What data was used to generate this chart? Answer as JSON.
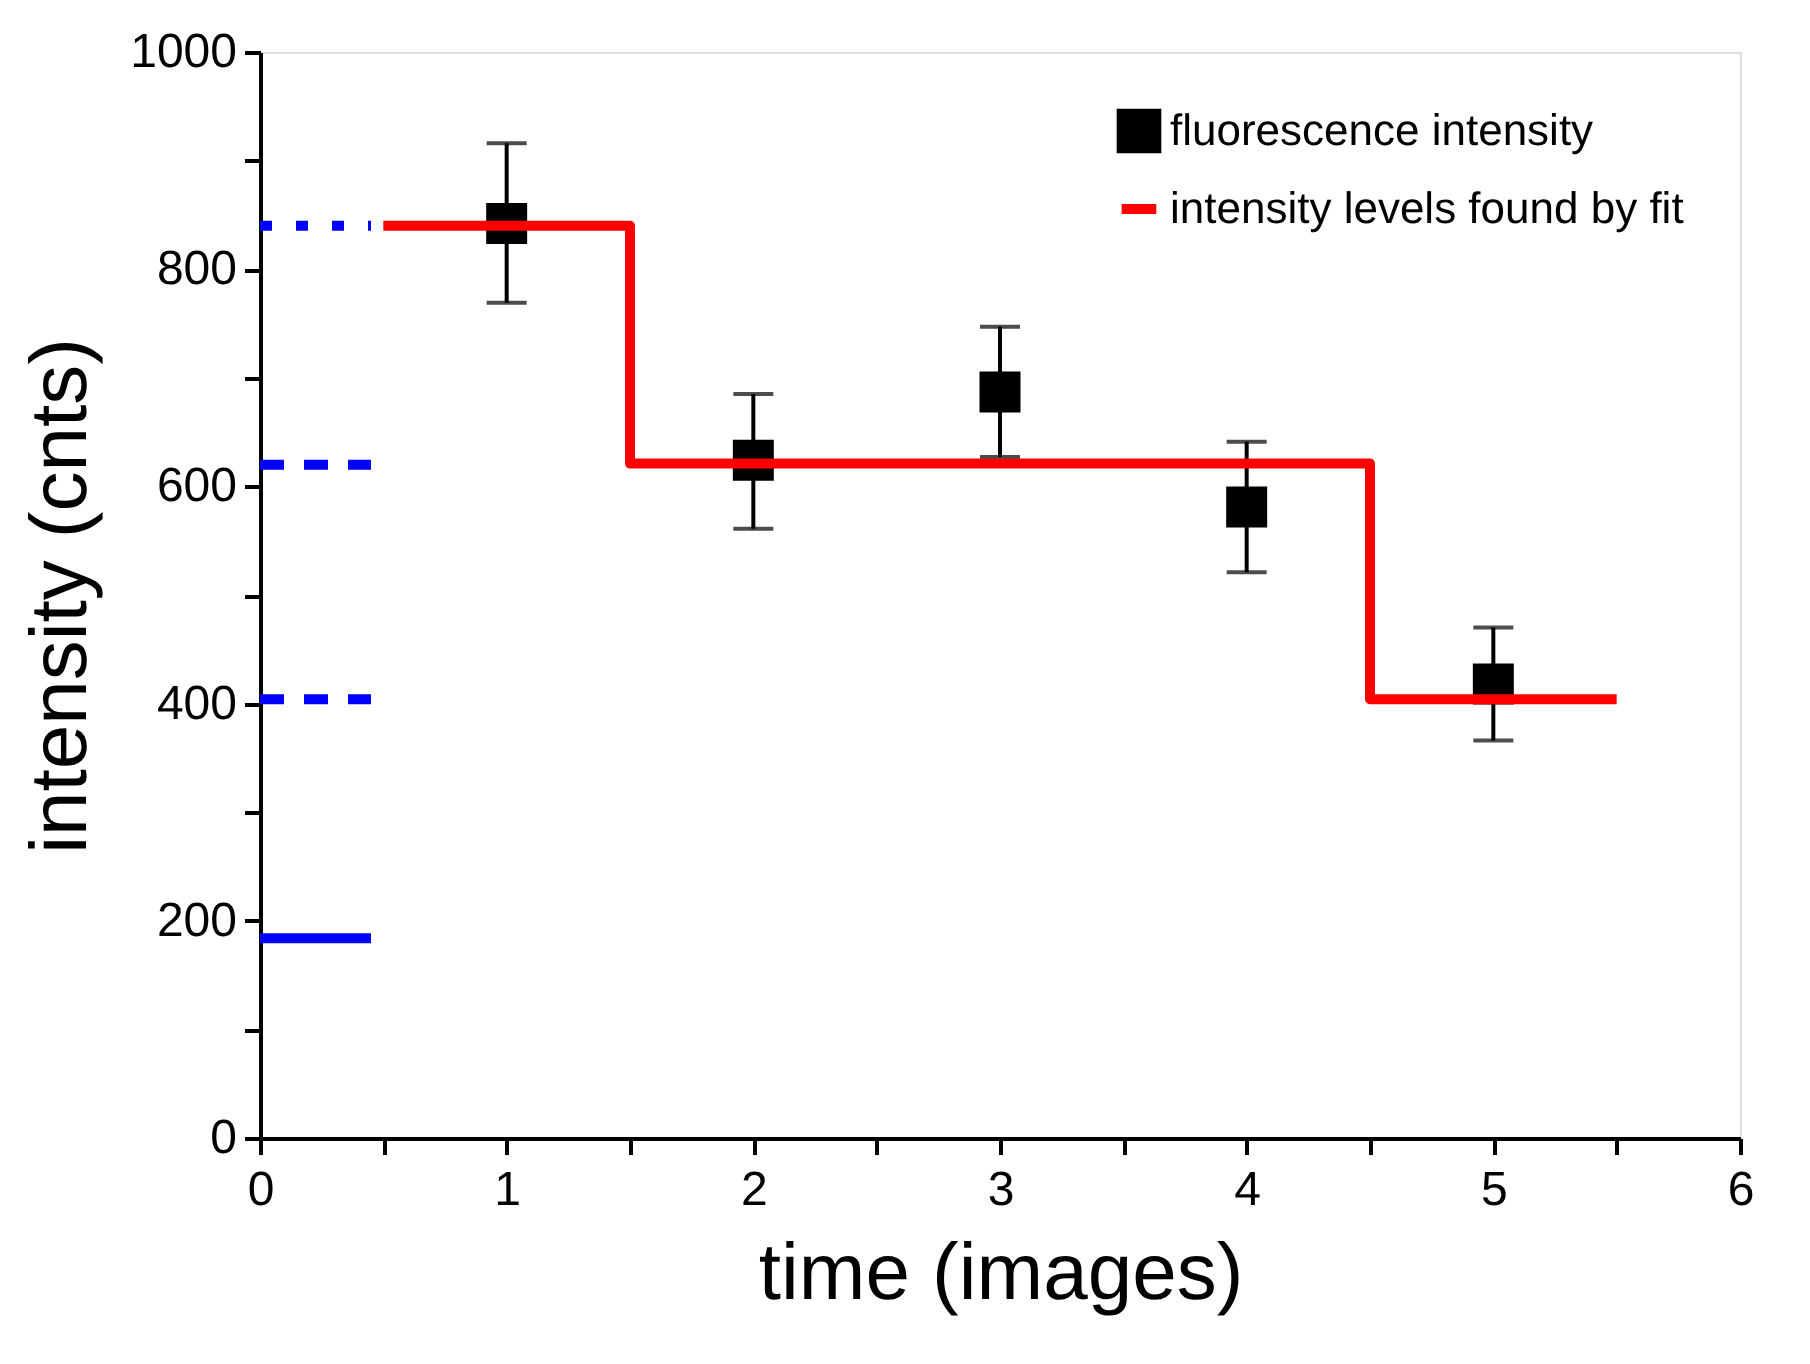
{
  "chart_data": {
    "type": "scatter",
    "xlabel": "time (images)",
    "ylabel": "intensity (cnts)",
    "xlim": [
      0,
      6
    ],
    "ylim": [
      0,
      1000
    ],
    "xticks": [
      0,
      {
        "value": 0.5,
        "label": null
      },
      1,
      {
        "value": 1.5,
        "label": null
      },
      2,
      {
        "value": 2.5,
        "label": null
      },
      3,
      {
        "value": 3.5,
        "label": null
      },
      4,
      {
        "value": 4.5,
        "label": null
      },
      5,
      {
        "value": 5.5,
        "label": null
      },
      6
    ],
    "yticks": [
      0,
      {
        "value": 100,
        "label": null
      },
      200,
      {
        "value": 300,
        "label": null
      },
      400,
      {
        "value": 500,
        "label": null
      },
      600,
      {
        "value": 700,
        "label": null
      },
      800,
      {
        "value": 900,
        "label": null
      },
      1000
    ],
    "grid": false,
    "legend": "top right",
    "series": [
      {
        "name": "fluorescence intensity",
        "marker": "square",
        "color": "#000000",
        "x": [
          1,
          2,
          3,
          4,
          5
        ],
        "values": [
          842,
          624,
          687,
          581,
          418
        ],
        "errors": [
          [
            769,
            916
          ],
          [
            561,
            685
          ],
          [
            627,
            747
          ],
          [
            521,
            641
          ],
          [
            366,
            470
          ]
        ]
      },
      {
        "name": "intensity levels found by fit",
        "type": "step",
        "color": "#ff0000",
        "line_style": "solid",
        "x": [
          0.5,
          1.5,
          4.5,
          5.5
        ],
        "values": [
          840,
          621,
          404,
          404
        ]
      },
      {
        "type": "line",
        "color": "#0000ff",
        "line_style": "dotted",
        "x": [
          0,
          0.45
        ],
        "values": [
          840,
          840
        ]
      },
      {
        "type": "line",
        "color": "#0000ff",
        "line_style": "dashed",
        "x": [
          0,
          0.45
        ],
        "values": [
          620,
          620
        ]
      },
      {
        "type": "line",
        "color": "#0000ff",
        "line_style": "dashed",
        "x": [
          0,
          0.45
        ],
        "values": [
          404,
          404
        ]
      },
      {
        "type": "line",
        "color": "#0000ff",
        "line_style": "solid",
        "x": [
          0,
          0.45
        ],
        "values": [
          184,
          184
        ]
      }
    ]
  }
}
